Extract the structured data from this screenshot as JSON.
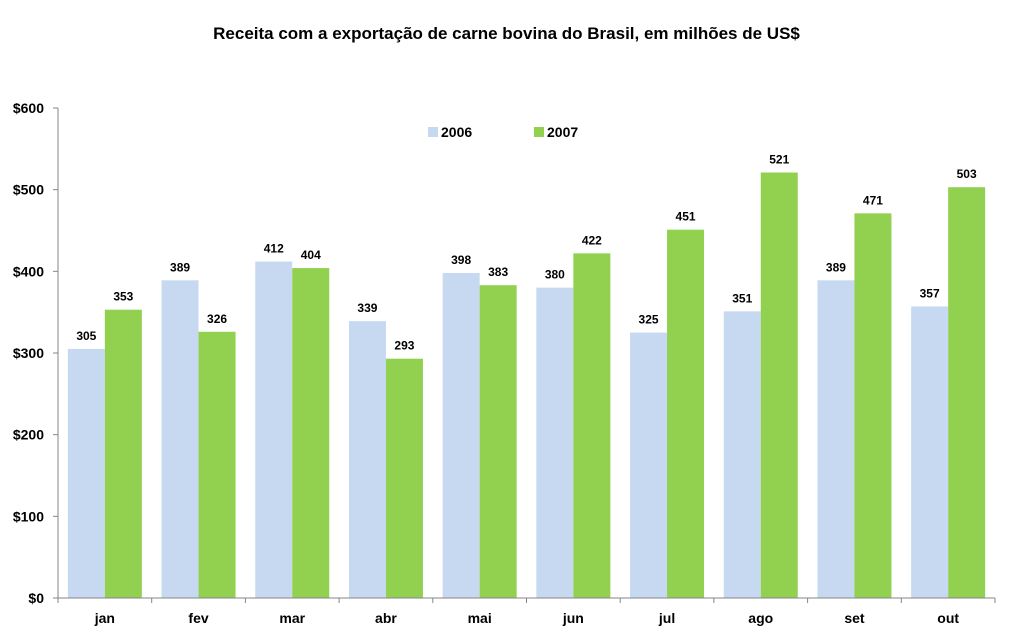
{
  "chart_data": {
    "type": "bar",
    "title": "Receita com a exportação de carne bovina do Brasil, em milhões de US$",
    "categories": [
      "jan",
      "fev",
      "mar",
      "abr",
      "mai",
      "jun",
      "jul",
      "ago",
      "set",
      "out"
    ],
    "series": [
      {
        "name": "2006",
        "color": "#c6d9f1",
        "values": [
          305,
          389,
          412,
          339,
          398,
          380,
          325,
          351,
          389,
          357
        ]
      },
      {
        "name": "2007",
        "color": "#92d050",
        "values": [
          353,
          326,
          404,
          293,
          383,
          422,
          451,
          521,
          471,
          503
        ]
      }
    ],
    "y_ticks": [
      0,
      100,
      200,
      300,
      400,
      500,
      600
    ],
    "y_tick_labels": [
      "$0",
      "$100",
      "$200",
      "$300",
      "$400",
      "$500",
      "$600"
    ],
    "ylim": [
      0,
      600
    ],
    "xlabel": "",
    "ylabel": "",
    "grid": false,
    "legend_position": "top-center",
    "data_labels": true
  }
}
